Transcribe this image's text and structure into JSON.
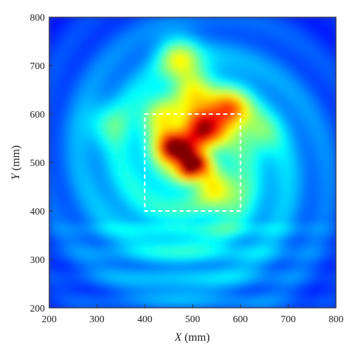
{
  "chart_data": {
    "type": "heatmap",
    "title": "",
    "xlabel_var": "X",
    "xlabel_unit": "(mm)",
    "ylabel_var": "Y",
    "ylabel_unit": "(mm)",
    "xlim": [
      200,
      800
    ],
    "ylim": [
      200,
      800
    ],
    "xticks": [
      200,
      300,
      400,
      500,
      600,
      700,
      800
    ],
    "yticks": [
      200,
      300,
      400,
      500,
      600,
      700,
      800
    ],
    "grid": false,
    "colormap": "jet",
    "highlight_box": {
      "x": [
        400,
        600
      ],
      "y": [
        400,
        600
      ],
      "style": "dashed",
      "color": "#ffffff"
    },
    "hotspots": [
      {
        "x": 460,
        "y": 532,
        "intensity": 1.0
      },
      {
        "x": 500,
        "y": 497,
        "intensity": 1.0
      },
      {
        "x": 520,
        "y": 575,
        "intensity": 0.82
      },
      {
        "x": 578,
        "y": 608,
        "intensity": 0.62
      },
      {
        "x": 500,
        "y": 660,
        "intensity": 0.38
      },
      {
        "x": 430,
        "y": 600,
        "intensity": 0.32
      },
      {
        "x": 560,
        "y": 440,
        "intensity": 0.36
      },
      {
        "x": 470,
        "y": 720,
        "intensity": 0.42
      },
      {
        "x": 320,
        "y": 580,
        "intensity": 0.22
      },
      {
        "x": 640,
        "y": 560,
        "intensity": 0.24
      }
    ]
  }
}
